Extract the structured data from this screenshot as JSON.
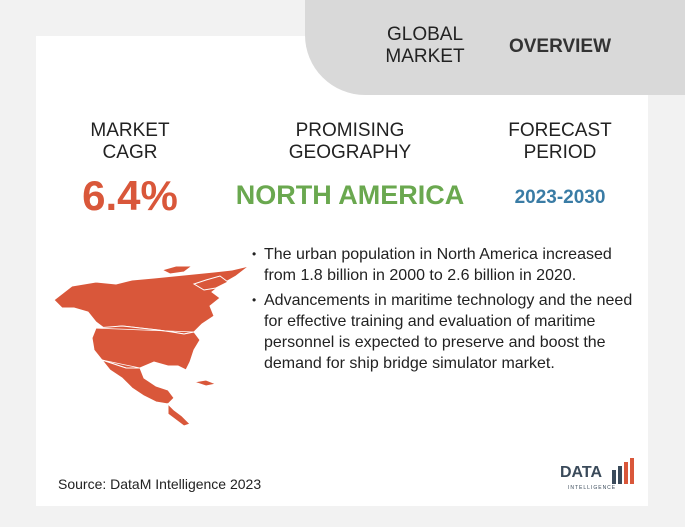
{
  "header": {
    "section": "GLOBAL\nMARKET",
    "title": "OVERVIEW"
  },
  "metrics": {
    "cagr_label": "MARKET\nCAGR",
    "cagr_value": "6.4%",
    "geo_label": "PROMISING\nGEOGRAPHY",
    "geo_value": "NORTH AMERICA",
    "period_label": "FORECAST\nPERIOD",
    "period_value": "2023-2030"
  },
  "bullets": [
    "The urban population in North America increased from 1.8 billion in 2000 to 2.6 billion in 2020.",
    "Advancements in maritime technology and the need for effective training and evaluation of maritime personnel is expected to preserve and boost the demand for ship bridge simulator market."
  ],
  "footer": {
    "source": "Source: DataM Intelligence  2023",
    "logo_text": "DATA",
    "logo_sub": "INTELLIGENCE"
  },
  "colors": {
    "accent_red": "#d9573a",
    "accent_green": "#6aa84f",
    "accent_blue": "#3a7ca5",
    "tab_gray": "#d9d9d9"
  },
  "icons": {
    "map": "north-america-map-icon",
    "logo": "datam-logo-icon"
  }
}
